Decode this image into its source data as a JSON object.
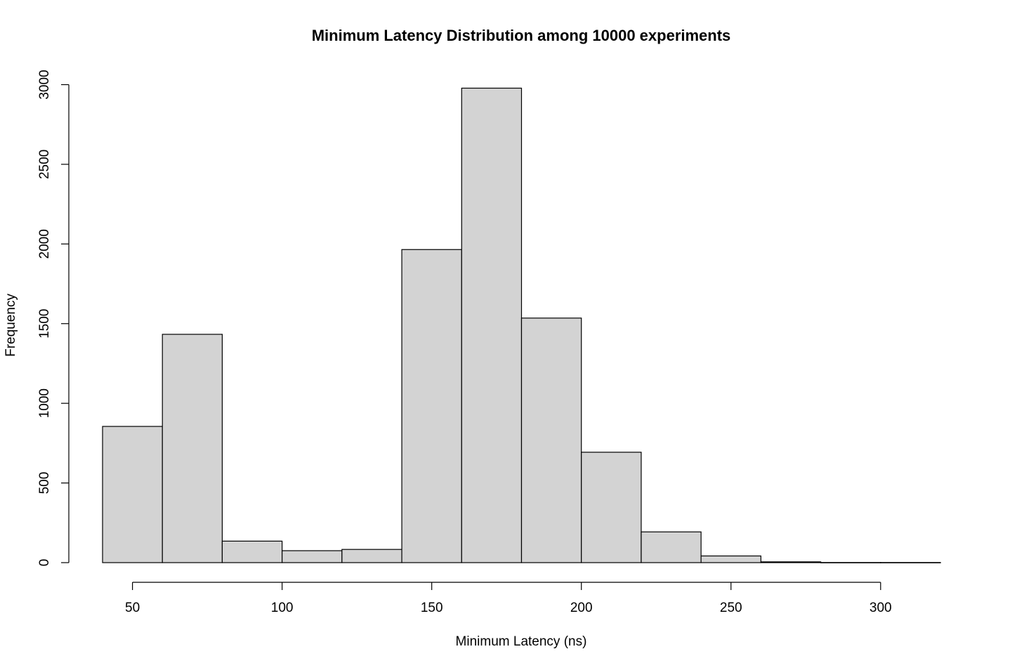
{
  "chart_data": {
    "type": "bar",
    "title": "Minimum Latency Distribution among 10000 experiments",
    "xlabel": "Minimum Latency (ns)",
    "ylabel": "Frequency",
    "bins": [
      {
        "from": 40,
        "to": 60,
        "count": 855
      },
      {
        "from": 60,
        "to": 80,
        "count": 1433
      },
      {
        "from": 80,
        "to": 100,
        "count": 135
      },
      {
        "from": 100,
        "to": 120,
        "count": 75
      },
      {
        "from": 120,
        "to": 140,
        "count": 83
      },
      {
        "from": 140,
        "to": 160,
        "count": 1965
      },
      {
        "from": 160,
        "to": 180,
        "count": 2978
      },
      {
        "from": 180,
        "to": 200,
        "count": 1535
      },
      {
        "from": 200,
        "to": 220,
        "count": 693
      },
      {
        "from": 220,
        "to": 240,
        "count": 193
      },
      {
        "from": 240,
        "to": 260,
        "count": 42
      },
      {
        "from": 260,
        "to": 280,
        "count": 5
      },
      {
        "from": 280,
        "to": 300,
        "count": 1
      },
      {
        "from": 300,
        "to": 320,
        "count": 1
      }
    ],
    "xlim": [
      40,
      320
    ],
    "ylim": [
      0,
      3000
    ],
    "x_ticks": [
      50,
      100,
      150,
      200,
      250,
      300
    ],
    "y_ticks": [
      0,
      500,
      1000,
      1500,
      2000,
      2500,
      3000
    ],
    "grid": false,
    "bar_color": "#d3d3d3",
    "edge_color": "#000000"
  }
}
